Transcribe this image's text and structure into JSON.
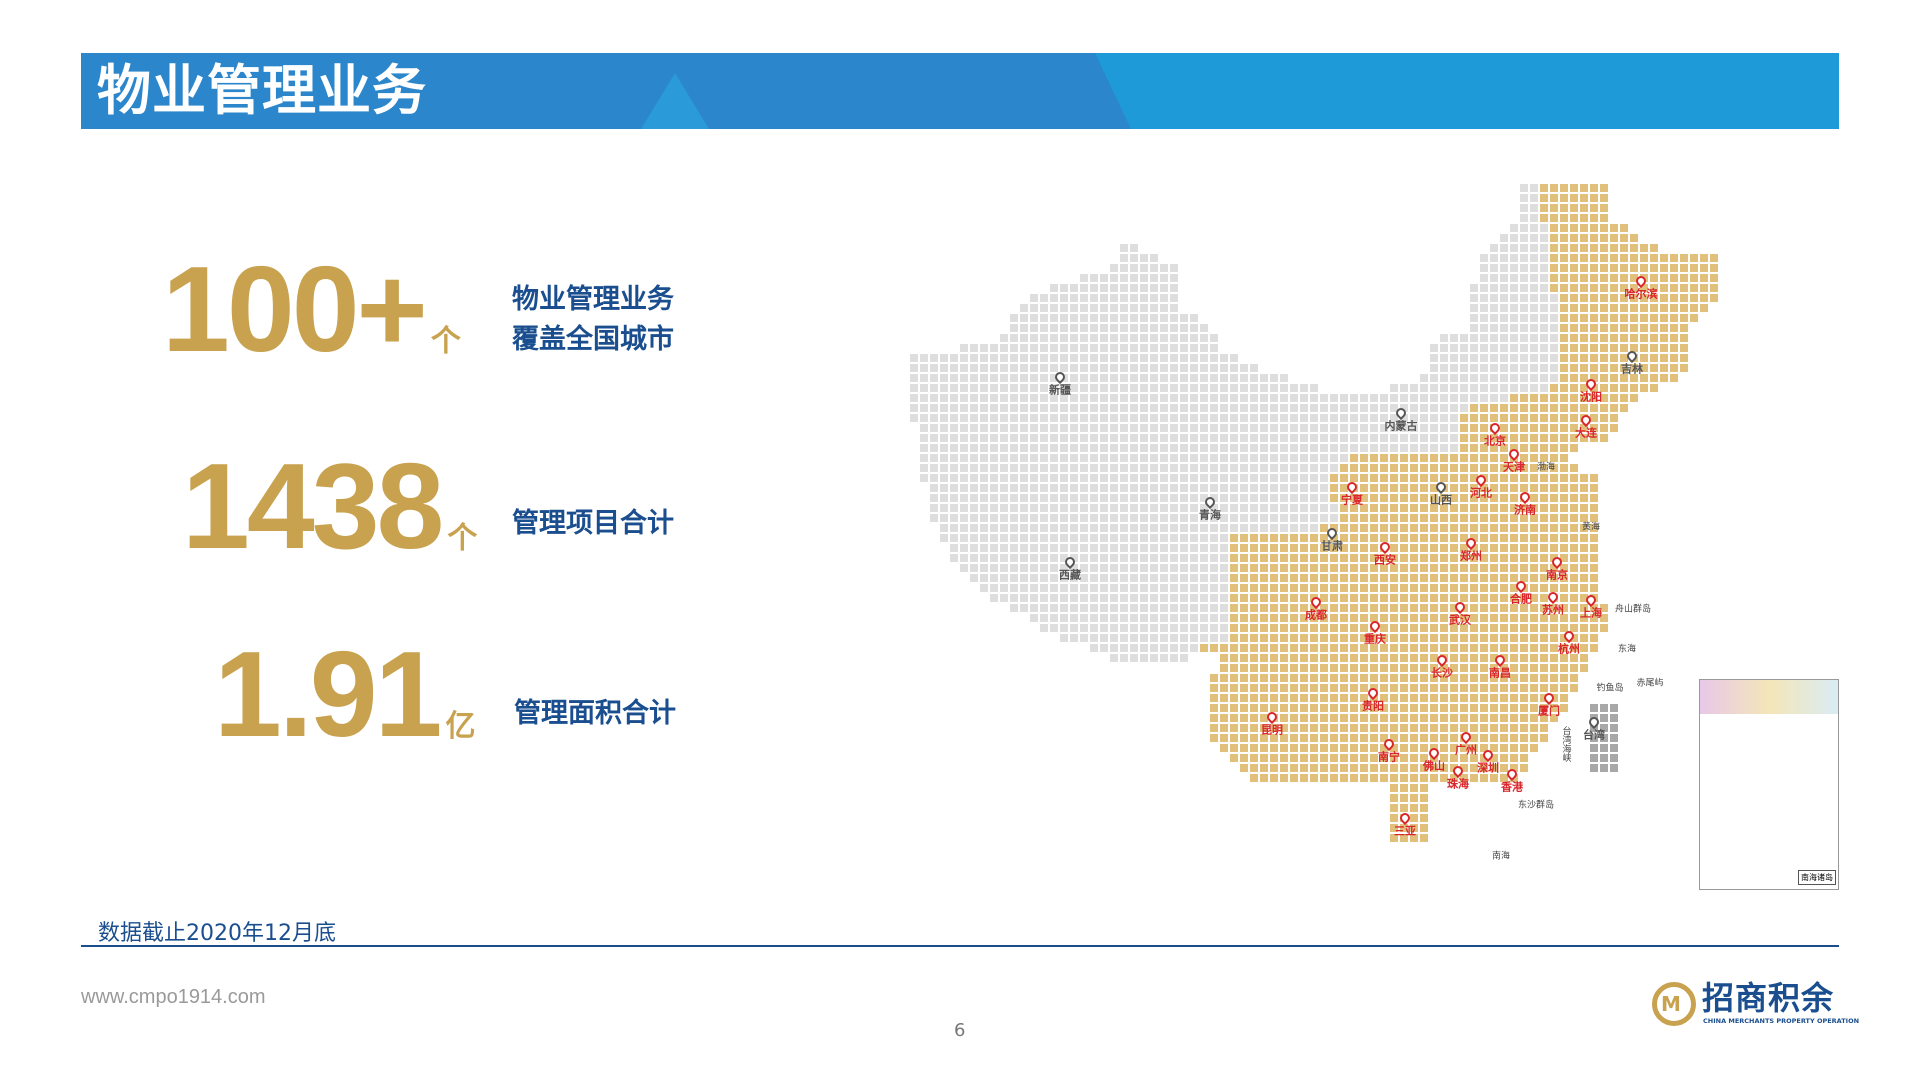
{
  "header": {
    "title": "物业管理业务"
  },
  "stats": [
    {
      "value": "100+",
      "unit": "个",
      "desc_line1": "物业管理业务",
      "desc_line2": "覆盖全国城市"
    },
    {
      "value": "1438",
      "unit": "个",
      "desc_line1": "管理项目合计"
    },
    {
      "value": "1.91",
      "unit": "亿",
      "desc_line1": "管理面积合计"
    }
  ],
  "footnote": "数据截止2020年12月底",
  "website": "www.cmpo1914.com",
  "page_number": "6",
  "logo": {
    "cn": "招商积余",
    "en": "CHINA MERCHANTS PROPERTY OPERATION"
  },
  "colors": {
    "gold": "#c8a24e",
    "navy": "#1a4e8f",
    "header_blue": "#2b86cb",
    "covered": "#e0c07a",
    "uncovered": "#dedede",
    "city_red": "#d9262c"
  },
  "map": {
    "covered_cities": [
      "哈尔滨",
      "沈阳",
      "大连",
      "北京",
      "天津",
      "河北",
      "济南",
      "宁夏",
      "郑州",
      "西安",
      "南京",
      "合肥",
      "苏州",
      "上海",
      "成都",
      "武汉",
      "重庆",
      "杭州",
      "长沙",
      "南昌",
      "贵阳",
      "厦门",
      "昆明",
      "南宁",
      "广州",
      "佛山",
      "深圳",
      "珠海",
      "香港",
      "三亚"
    ],
    "other_regions": [
      "新疆",
      "内蒙古",
      "吉林",
      "山西",
      "青海",
      "甘肃",
      "西藏",
      "台湾"
    ],
    "sea_labels": [
      "渤海",
      "黄海",
      "舟山群岛",
      "东海",
      "钓鱼岛",
      "赤尾屿",
      "台湾海峡",
      "东沙群岛",
      "南海"
    ],
    "inset_caption": "南海诸岛"
  }
}
